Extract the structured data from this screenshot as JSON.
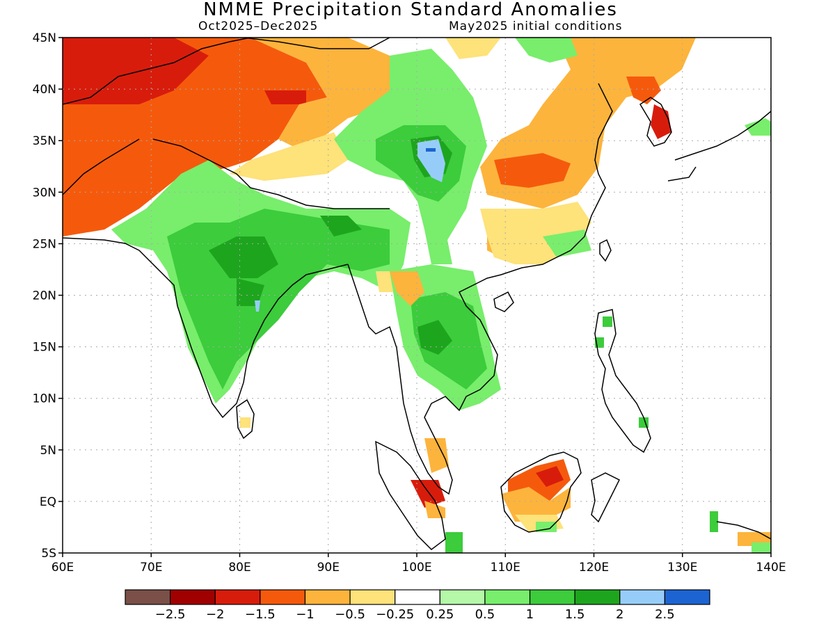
{
  "title": "NMME Precipitation Standard Anomalies",
  "subtitle_left": "Oct2025–Dec2025",
  "subtitle_right": "May2025 initial conditions",
  "lat_labels": [
    "45N",
    "40N",
    "35N",
    "30N",
    "25N",
    "20N",
    "15N",
    "10N",
    "5N",
    "EQ",
    "5S"
  ],
  "lat_values": [
    45,
    40,
    35,
    30,
    25,
    20,
    15,
    10,
    5,
    0,
    -5
  ],
  "lon_labels": [
    "60E",
    "70E",
    "80E",
    "90E",
    "100E",
    "110E",
    "120E",
    "130E",
    "140E"
  ],
  "lon_values": [
    60,
    70,
    80,
    90,
    100,
    110,
    120,
    130,
    140
  ],
  "colorbar": {
    "colors": [
      "#7a5048",
      "#a00000",
      "#d81c0c",
      "#f55a0c",
      "#fdb43c",
      "#fee27a",
      "#ffffff",
      "#b4f8a8",
      "#78ee6c",
      "#3ccc3c",
      "#1ea51e",
      "#96cdf8",
      "#1c64d2"
    ],
    "labels": [
      "−2.5",
      "−2",
      "−1.5",
      "−1",
      "−0.5",
      "−0.25",
      "0.25",
      "0.5",
      "1",
      "1.5",
      "2",
      "2.5"
    ]
  }
}
